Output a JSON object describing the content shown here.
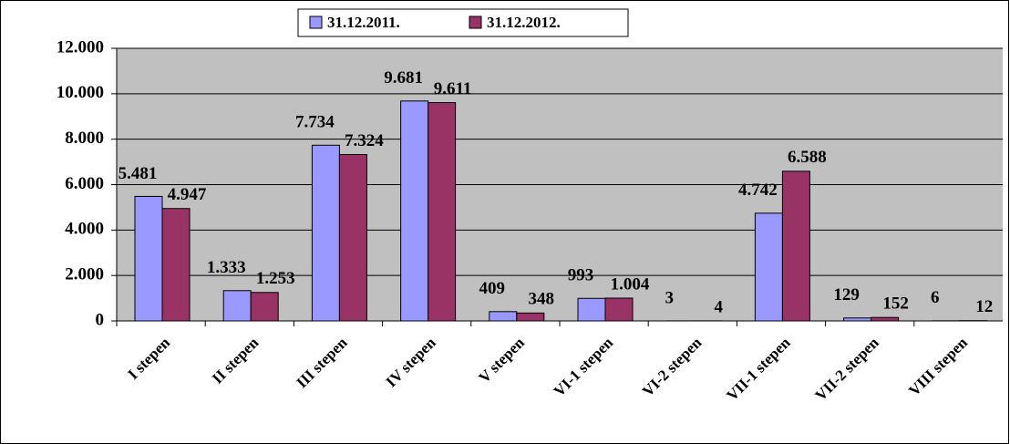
{
  "chart_data": {
    "type": "bar",
    "categories": [
      "I stepen",
      "II stepen",
      "III stepen",
      "IV stepen",
      "V stepen",
      "VI-1 stepen",
      "VI-2 stepen",
      "VII-1 stepen",
      "VII-2 stepen",
      "VIII stepen"
    ],
    "series": [
      {
        "name": "31.12.2011.",
        "color": "#9999ff",
        "values": [
          5481,
          1333,
          7734,
          9681,
          409,
          993,
          3,
          4742,
          129,
          6
        ],
        "value_labels": [
          "5.481",
          "1.333",
          "7.734",
          "9.681",
          "409",
          "993",
          "3",
          "4.742",
          "129",
          "6"
        ]
      },
      {
        "name": "31.12.2012.",
        "color": "#993366",
        "values": [
          4947,
          1253,
          7324,
          9611,
          348,
          1004,
          4,
          6588,
          152,
          12
        ],
        "value_labels": [
          "4.947",
          "1.253",
          "7.324",
          "9.611",
          "348",
          "1.004",
          "4",
          "6.588",
          "152",
          "12"
        ]
      }
    ],
    "ylim": [
      0,
      12000
    ],
    "yticks": [
      0,
      {
        "value": 2000,
        "label": "2.000"
      },
      {
        "value": 4000,
        "label": "4.000"
      },
      {
        "value": 6000,
        "label": "6.000"
      },
      {
        "value": 8000,
        "label": "8.000"
      },
      {
        "value": 10000,
        "label": "10.000"
      },
      {
        "value": 12000,
        "label": "12.000"
      }
    ],
    "grid": true,
    "legend": "top"
  }
}
